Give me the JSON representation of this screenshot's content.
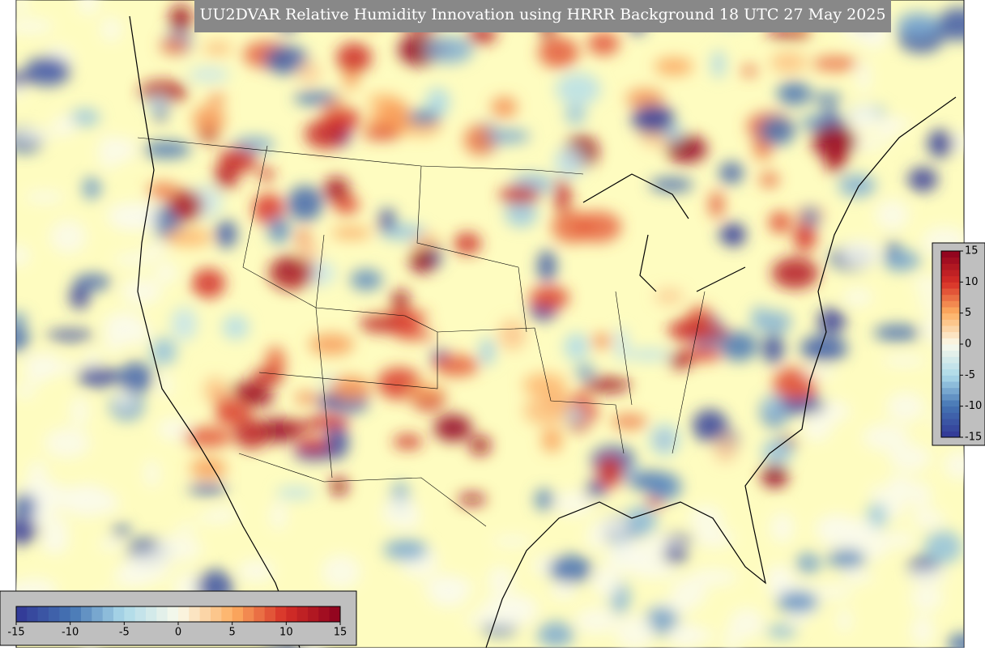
{
  "title": "UU2DVAR Relative Humidity Innovation using HRRR Background 18 UTC 27 May 2025",
  "colorbars": [
    {
      "orientation": "horizontal",
      "range": [
        -15,
        15
      ],
      "ticks": [
        -15,
        -10,
        -5,
        0,
        5,
        10,
        15
      ]
    },
    {
      "orientation": "vertical",
      "range": [
        -15,
        15
      ],
      "ticks": [
        15,
        10,
        5,
        0,
        -5,
        -10,
        -15
      ]
    }
  ]
}
